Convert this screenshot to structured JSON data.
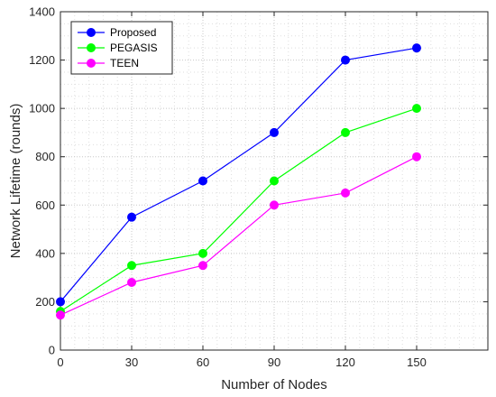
{
  "chart_data": {
    "type": "line",
    "title": "",
    "xlabel": "Number of Nodes",
    "ylabel": "Network Lifetime (rounds)",
    "x": [
      0,
      30,
      60,
      90,
      120,
      150
    ],
    "xlim": [
      0,
      180
    ],
    "ylim": [
      0,
      1400
    ],
    "xticks": [
      "0",
      "30",
      "60",
      "90",
      "120",
      "150"
    ],
    "yticks": [
      "0",
      "200",
      "400",
      "600",
      "800",
      "1000",
      "1200",
      "1400"
    ],
    "grid": "on (major and minor, dotted)",
    "legend_position": "top-left",
    "series": [
      {
        "name": "Proposed",
        "color": "#0000ff",
        "values": [
          200,
          550,
          700,
          900,
          1200,
          1250
        ]
      },
      {
        "name": "PEGASIS",
        "color": "#00ff00",
        "values": [
          160,
          350,
          400,
          700,
          900,
          1000
        ]
      },
      {
        "name": "TEEN",
        "color": "#ff00ff",
        "values": [
          145,
          280,
          350,
          600,
          650,
          800
        ]
      }
    ]
  }
}
